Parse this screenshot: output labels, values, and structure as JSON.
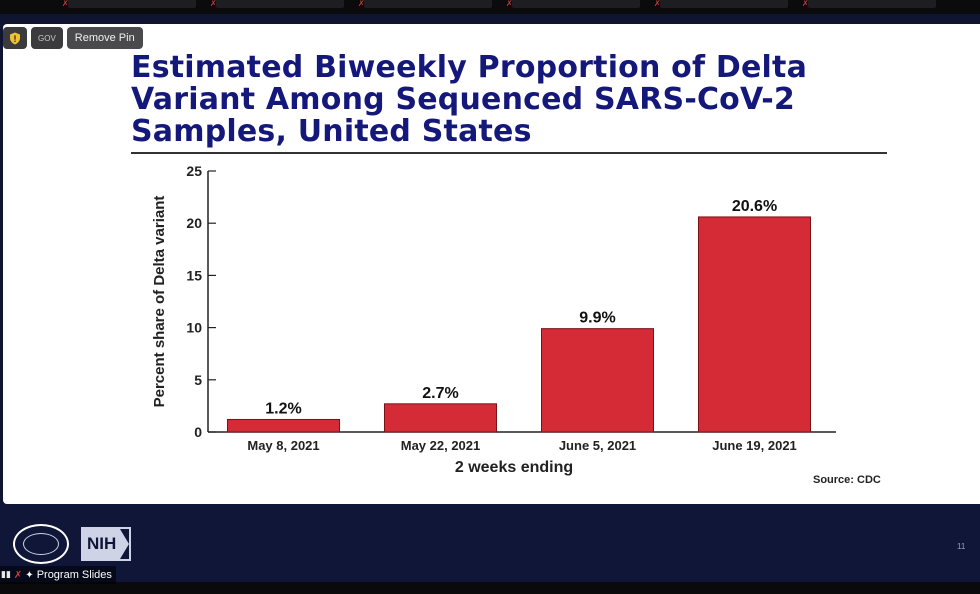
{
  "window": {
    "controls": {
      "gov_label": "GOV",
      "remove_pin_label": "Remove Pin"
    },
    "participant_tag": {
      "name": "Program Slides",
      "icons": [
        "signal-icon",
        "mic-off-icon",
        "pin-icon"
      ]
    },
    "slide_number": "11"
  },
  "slide": {
    "title_lines": [
      "Estimated Biweekly Proportion of Delta",
      "Variant Among Sequenced SARS-CoV-2",
      "Samples, United States"
    ],
    "source": "Source: CDC",
    "footer_logos": [
      "white-house-seal",
      "NIH"
    ],
    "nih_text": "NIH"
  },
  "chart_data": {
    "type": "bar",
    "categories": [
      "May 8, 2021",
      "May 22, 2021",
      "June 5, 2021",
      "June 19, 2021"
    ],
    "values": [
      1.2,
      2.7,
      9.9,
      20.6
    ],
    "data_labels": [
      "1.2%",
      "2.7%",
      "9.9%",
      "20.6%"
    ],
    "title": "Estimated Biweekly Proportion of Delta Variant Among Sequenced SARS-CoV-2 Samples, United States",
    "xlabel": "2 weeks ending",
    "ylabel": "Percent share of Delta variant",
    "ylim": [
      0,
      25
    ],
    "yticks": [
      0,
      5,
      10,
      15,
      20,
      25
    ],
    "grid": false,
    "legend": "none"
  },
  "colors": {
    "bar": "#d42b37",
    "title": "#14187a",
    "footer_bg": "#0f1638"
  }
}
